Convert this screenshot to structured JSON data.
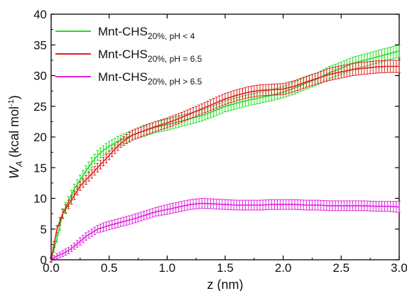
{
  "chart_data": {
    "type": "line",
    "x_axis": {
      "label": "z (nm)",
      "range": [
        0.0,
        3.0
      ],
      "ticks": [
        "0.0",
        "0.5",
        "1.0",
        "1.5",
        "2.0",
        "2.5",
        "3.0"
      ]
    },
    "y_axis": {
      "label_main": "W",
      "label_sub": "A",
      "label_unit": " (kcal mol",
      "label_sup": "-1",
      "label_close": ")",
      "range": [
        0,
        40
      ],
      "ticks": [
        "0",
        "5",
        "10",
        "15",
        "20",
        "25",
        "30",
        "35",
        "40"
      ]
    },
    "grid": false,
    "legend_position": "top-left",
    "series": [
      {
        "name_main": "Mnt-CHS",
        "name_sub": "20%, pH < 4",
        "color": "#22dd22",
        "x": [
          0.0,
          0.05,
          0.1,
          0.15,
          0.2,
          0.25,
          0.3,
          0.35,
          0.4,
          0.45,
          0.5,
          0.6,
          0.7,
          0.8,
          0.9,
          1.0,
          1.1,
          1.2,
          1.3,
          1.4,
          1.5,
          1.6,
          1.7,
          1.8,
          1.9,
          2.0,
          2.1,
          2.2,
          2.3,
          2.4,
          2.5,
          2.6,
          2.7,
          2.8,
          2.9,
          3.0
        ],
        "y": [
          0.0,
          3.5,
          7.5,
          9.5,
          11.5,
          13.0,
          14.5,
          15.8,
          17.0,
          17.8,
          18.5,
          19.5,
          20.3,
          21.0,
          21.6,
          22.0,
          22.5,
          23.0,
          23.5,
          24.2,
          25.0,
          25.5,
          26.0,
          26.4,
          26.8,
          27.3,
          28.0,
          28.8,
          29.5,
          30.5,
          31.2,
          32.0,
          32.5,
          33.0,
          33.5,
          34.0
        ],
        "err": [
          0.4,
          0.6,
          0.8,
          0.8,
          0.8,
          0.8,
          0.8,
          0.8,
          0.8,
          0.8,
          0.8,
          0.8,
          0.8,
          0.9,
          0.9,
          0.9,
          0.9,
          0.9,
          0.9,
          0.9,
          0.9,
          0.9,
          0.9,
          0.9,
          0.9,
          0.9,
          1.0,
          1.0,
          1.0,
          1.0,
          1.0,
          1.0,
          1.0,
          1.0,
          1.0,
          1.0
        ]
      },
      {
        "name_main": "Mnt-CHS",
        "name_sub": "20%, pH = 6.5",
        "color": "#dd2222",
        "x": [
          0.0,
          0.05,
          0.1,
          0.15,
          0.2,
          0.25,
          0.3,
          0.35,
          0.4,
          0.45,
          0.5,
          0.6,
          0.7,
          0.8,
          0.9,
          1.0,
          1.1,
          1.2,
          1.3,
          1.4,
          1.5,
          1.6,
          1.7,
          1.8,
          1.9,
          2.0,
          2.1,
          2.2,
          2.3,
          2.4,
          2.5,
          2.6,
          2.7,
          2.8,
          2.9,
          3.0
        ],
        "y": [
          0.0,
          5.0,
          7.5,
          9.0,
          10.5,
          12.0,
          13.0,
          14.0,
          15.0,
          16.0,
          17.0,
          19.0,
          20.3,
          21.0,
          21.7,
          22.3,
          23.0,
          23.8,
          24.6,
          25.4,
          26.2,
          26.8,
          27.3,
          27.6,
          27.7,
          27.8,
          28.3,
          29.0,
          29.6,
          30.2,
          30.6,
          31.0,
          31.2,
          31.4,
          31.5,
          31.5
        ],
        "err": [
          0.4,
          0.6,
          0.7,
          0.7,
          0.7,
          0.7,
          0.7,
          0.7,
          0.7,
          0.7,
          0.7,
          0.7,
          0.8,
          0.8,
          0.8,
          0.8,
          0.8,
          0.8,
          0.8,
          0.9,
          0.9,
          0.9,
          0.9,
          0.9,
          0.9,
          0.9,
          0.9,
          0.9,
          0.9,
          1.0,
          1.0,
          1.0,
          1.0,
          1.0,
          1.0,
          1.0
        ]
      },
      {
        "name_main": "Mnt-CHS",
        "name_sub": "20%, pH > 6.5",
        "color": "#dd22dd",
        "x": [
          0.0,
          0.05,
          0.1,
          0.15,
          0.2,
          0.25,
          0.3,
          0.35,
          0.4,
          0.45,
          0.5,
          0.6,
          0.7,
          0.8,
          0.9,
          1.0,
          1.1,
          1.2,
          1.3,
          1.4,
          1.5,
          1.6,
          1.7,
          1.8,
          1.9,
          2.0,
          2.1,
          2.2,
          2.3,
          2.4,
          2.5,
          2.6,
          2.7,
          2.8,
          2.9,
          3.0
        ],
        "y": [
          0.0,
          0.6,
          1.0,
          1.5,
          2.2,
          3.0,
          3.8,
          4.4,
          5.0,
          5.3,
          5.6,
          6.1,
          6.6,
          7.2,
          7.8,
          8.2,
          8.6,
          9.0,
          9.2,
          9.1,
          9.0,
          8.9,
          8.9,
          8.9,
          9.0,
          9.0,
          9.0,
          8.9,
          8.9,
          8.8,
          8.8,
          8.8,
          8.8,
          8.7,
          8.7,
          8.6
        ],
        "err": [
          0.3,
          0.4,
          0.5,
          0.5,
          0.5,
          0.6,
          0.6,
          0.6,
          0.6,
          0.7,
          0.7,
          0.7,
          0.7,
          0.7,
          0.7,
          0.8,
          0.8,
          0.8,
          0.8,
          0.8,
          0.8,
          0.8,
          0.8,
          0.8,
          0.8,
          0.8,
          0.8,
          0.8,
          0.8,
          0.8,
          0.8,
          0.8,
          0.8,
          0.8,
          0.8,
          0.9
        ]
      }
    ]
  }
}
